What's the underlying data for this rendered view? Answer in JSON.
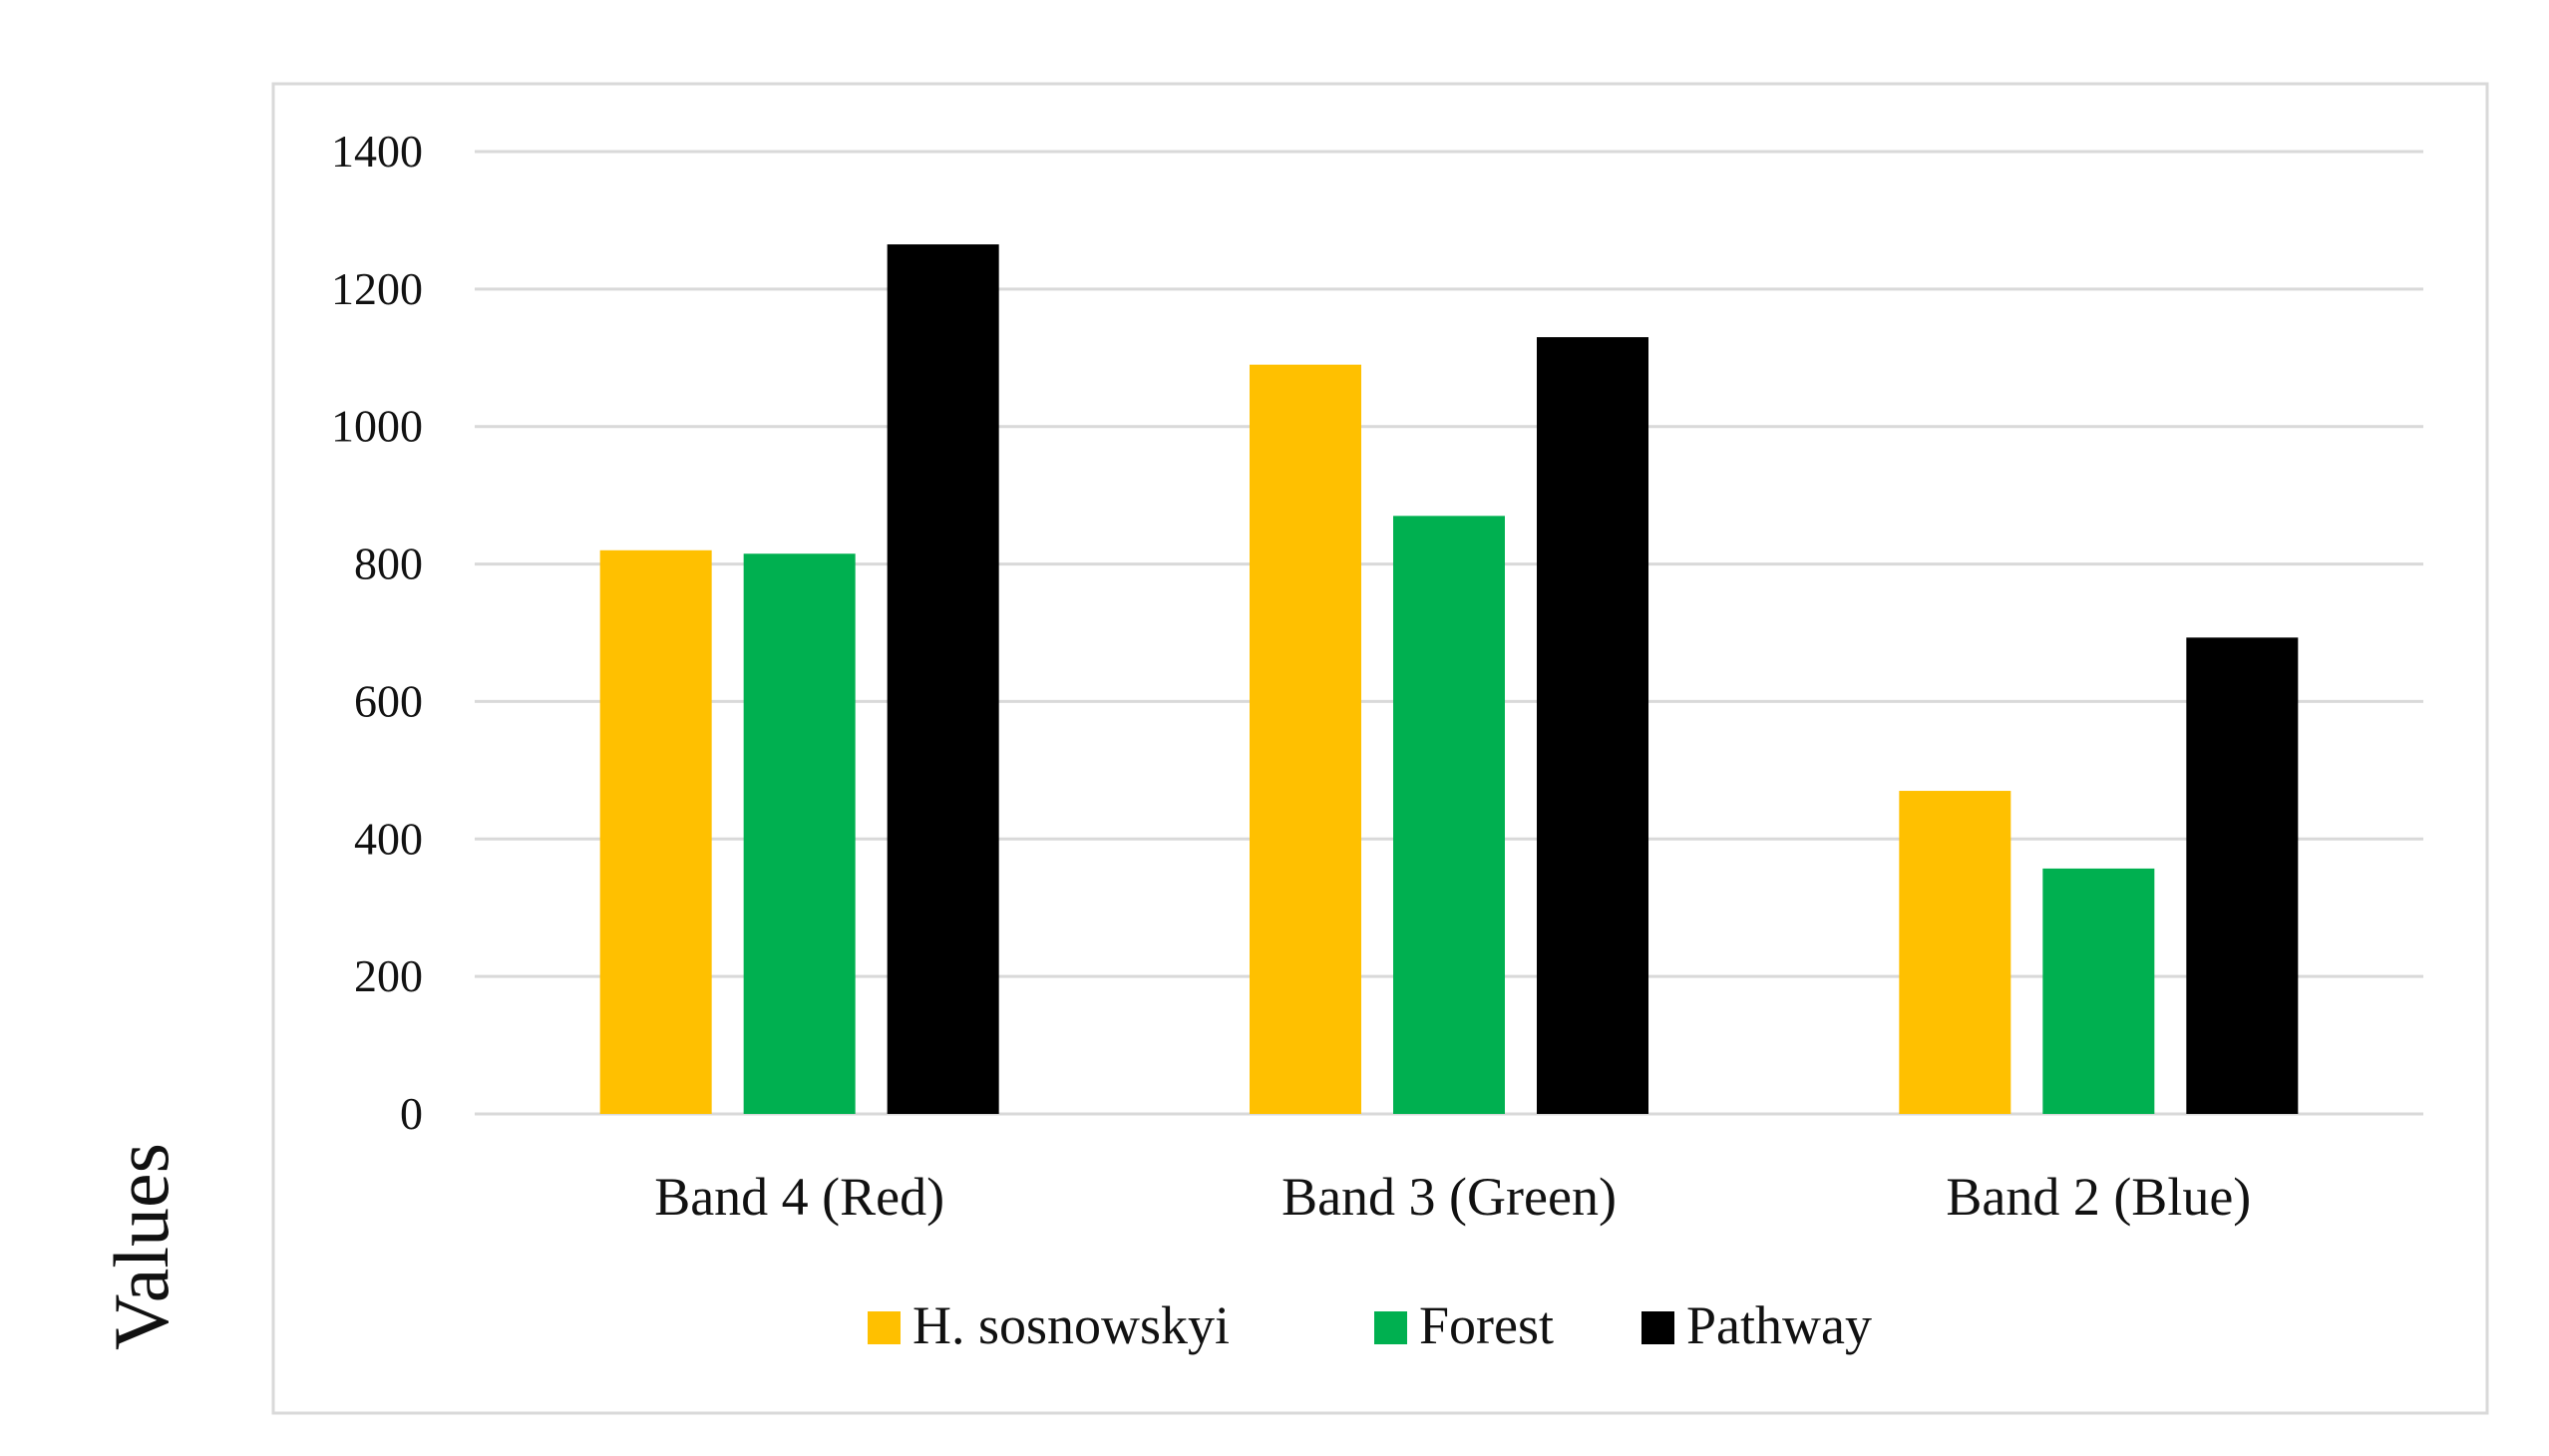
{
  "chart_data": {
    "type": "bar",
    "title": "",
    "xlabel": "",
    "ylabel": "Values",
    "ylim": [
      0,
      1400
    ],
    "yticks": [
      0,
      200,
      400,
      600,
      800,
      1000,
      1200,
      1400
    ],
    "grid": true,
    "legend_position": "bottom",
    "categories": [
      "Band 4 (Red)",
      "Band 3 (Green)",
      "Band 2 (Blue)"
    ],
    "series": [
      {
        "name": "H. sosnowskyi",
        "color": "#ffc000",
        "values": [
          820,
          1090,
          470
        ]
      },
      {
        "name": "Forest",
        "color": "#00b050",
        "values": [
          815,
          870,
          357
        ]
      },
      {
        "name": "Pathway",
        "color": "#000000",
        "values": [
          1265,
          1130,
          693
        ]
      }
    ]
  }
}
